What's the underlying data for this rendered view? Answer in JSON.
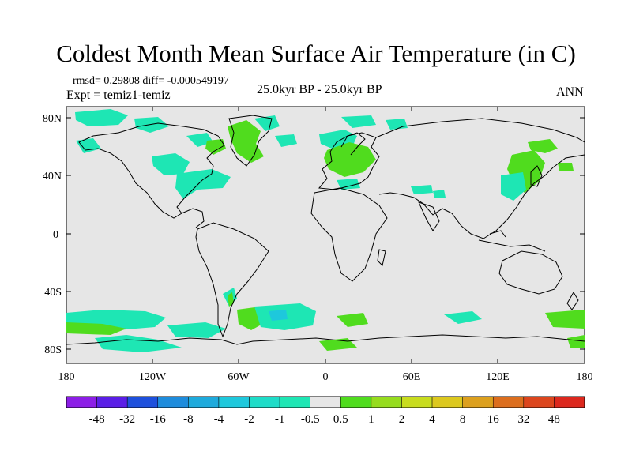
{
  "title": "Coldest Month Mean Surface Air Temperature (in C)",
  "stats": "rmsd= 0.29808 diff= -0.000549197",
  "experiment": "Expt = temiz1-temiz",
  "period": "25.0kyr BP - 25.0kyr BP",
  "season": "ANN",
  "lat_ticks": [
    "80N",
    "40N",
    "0",
    "40S",
    "80S"
  ],
  "lon_ticks": [
    "180",
    "120W",
    "60W",
    "0",
    "60E",
    "120E",
    "180"
  ],
  "colorbar": {
    "labels": [
      "-48",
      "-32",
      "-16",
      "-8",
      "-4",
      "-2",
      "-1",
      "-0.5",
      "0.5",
      "1",
      "2",
      "4",
      "8",
      "16",
      "32",
      "48"
    ],
    "colors": [
      "#8c1ee6",
      "#5a1ee6",
      "#1e50dc",
      "#1e8cdc",
      "#1eaadc",
      "#1ec8dc",
      "#1edcc8",
      "#1ee6b4",
      "#e6e6e6",
      "#50dc1e",
      "#96dc1e",
      "#c8dc1e",
      "#dcc81e",
      "#dca01e",
      "#dc6e1e",
      "#dc461e",
      "#dc281e"
    ]
  },
  "colors": {
    "land_neutral": "#e6e6e6",
    "cool_light": "#1ee6b4",
    "cool_mid": "#1ec8dc",
    "warm_light": "#50dc1e",
    "warm_mid": "#96dc1e"
  }
}
